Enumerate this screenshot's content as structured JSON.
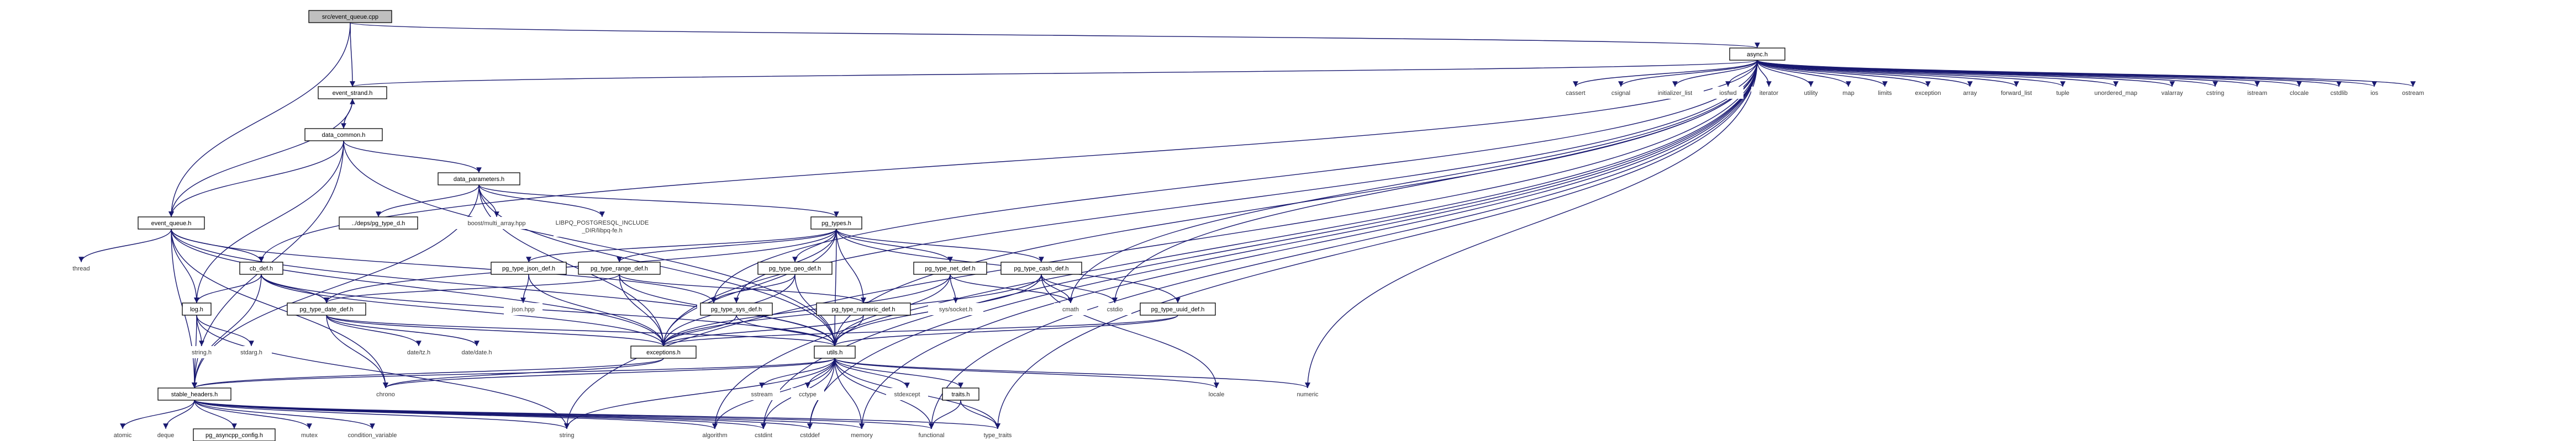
{
  "graph": {
    "title": "src/event_queue.cpp",
    "edge_color": "#191970",
    "root_fill": "#bfbfbf",
    "nodes": [
      {
        "id": "root",
        "label": "src/event_queue.cpp",
        "kind": "root"
      },
      {
        "id": "async",
        "label": "async.h",
        "kind": "file"
      },
      {
        "id": "event_strand",
        "label": "event_strand.h",
        "kind": "file"
      },
      {
        "id": "data_common",
        "label": "data_common.h",
        "kind": "file"
      },
      {
        "id": "data_parameters",
        "label": "data_parameters.h",
        "kind": "file"
      },
      {
        "id": "event_queue_h",
        "label": "event_queue.h",
        "kind": "file"
      },
      {
        "id": "pg_type_oid",
        "label": "../deps/pg_type_d.h",
        "kind": "file"
      },
      {
        "id": "boost_multi_array",
        "label": "boost/multi_array.hpp",
        "kind": "missing"
      },
      {
        "id": "libpq_fe",
        "label": "LIBPQ_POSTGRESQL_INCLUDE_DIR/libpq-fe.h",
        "kind": "missing"
      },
      {
        "id": "pg_types",
        "label": "pg_types.h",
        "kind": "file"
      },
      {
        "id": "thread",
        "label": "thread",
        "kind": "missing"
      },
      {
        "id": "cb_def",
        "label": "cb_def.h",
        "kind": "file"
      },
      {
        "id": "pg_type_json_def",
        "label": "pg_type_json_def.h",
        "kind": "file"
      },
      {
        "id": "pg_type_range_def",
        "label": "pg_type_range_def.h",
        "kind": "file"
      },
      {
        "id": "pg_type_geo_def",
        "label": "pg_type_geo_def.h",
        "kind": "file"
      },
      {
        "id": "pg_type_net_def",
        "label": "pg_type_net_def.h",
        "kind": "file"
      },
      {
        "id": "pg_type_cash_def",
        "label": "pg_type_cash_def.h",
        "kind": "file"
      },
      {
        "id": "log_h",
        "label": "log.h",
        "kind": "file"
      },
      {
        "id": "pg_type_date_def",
        "label": "pg_type_date_def.h",
        "kind": "file"
      },
      {
        "id": "json_hpp",
        "label": "json.hpp",
        "kind": "missing"
      },
      {
        "id": "vector",
        "label": "vector",
        "kind": "missing"
      },
      {
        "id": "pg_type_sys_def",
        "label": "pg_type_sys_def.h",
        "kind": "file"
      },
      {
        "id": "pg_type_numeric_def",
        "label": "pg_type_numeric_def.h",
        "kind": "file"
      },
      {
        "id": "sys_socket",
        "label": "sys/socket.h",
        "kind": "missing"
      },
      {
        "id": "cmath",
        "label": "cmath",
        "kind": "missing"
      },
      {
        "id": "cstdio",
        "label": "cstdio",
        "kind": "missing"
      },
      {
        "id": "pg_type_uuid_def",
        "label": "pg_type_uuid_def.h",
        "kind": "file"
      },
      {
        "id": "string_h",
        "label": "string.h",
        "kind": "missing"
      },
      {
        "id": "stdarg_h",
        "label": "stdarg.h",
        "kind": "missing"
      },
      {
        "id": "date_tz",
        "label": "date/tz.h",
        "kind": "missing"
      },
      {
        "id": "date_date",
        "label": "date/date.h",
        "kind": "missing"
      },
      {
        "id": "exceptions",
        "label": "exceptions.h",
        "kind": "file"
      },
      {
        "id": "utils",
        "label": "utils.h",
        "kind": "file"
      },
      {
        "id": "stable_headers",
        "label": "stable_headers.h",
        "kind": "file"
      },
      {
        "id": "chrono",
        "label": "chrono",
        "kind": "missing"
      },
      {
        "id": "sstream",
        "label": "sstream",
        "kind": "missing"
      },
      {
        "id": "cctype",
        "label": "cctype",
        "kind": "missing"
      },
      {
        "id": "stdexcept",
        "label": "stdexcept",
        "kind": "missing"
      },
      {
        "id": "traits",
        "label": "traits.h",
        "kind": "file"
      },
      {
        "id": "locale",
        "label": "locale",
        "kind": "missing"
      },
      {
        "id": "numeric",
        "label": "numeric",
        "kind": "missing"
      },
      {
        "id": "atomic",
        "label": "atomic",
        "kind": "missing"
      },
      {
        "id": "deque",
        "label": "deque",
        "kind": "missing"
      },
      {
        "id": "pg_asyncpp_config",
        "label": "pg_asyncpp_config.h",
        "kind": "file"
      },
      {
        "id": "mutex",
        "label": "mutex",
        "kind": "missing"
      },
      {
        "id": "condition_variable",
        "label": "condition_variable",
        "kind": "missing"
      },
      {
        "id": "string",
        "label": "string",
        "kind": "missing"
      },
      {
        "id": "algorithm",
        "label": "algorithm",
        "kind": "missing"
      },
      {
        "id": "cstdint",
        "label": "cstdint",
        "kind": "missing"
      },
      {
        "id": "cstddef",
        "label": "cstddef",
        "kind": "missing"
      },
      {
        "id": "memory",
        "label": "memory",
        "kind": "missing"
      },
      {
        "id": "functional",
        "label": "functional",
        "kind": "missing"
      },
      {
        "id": "type_traits",
        "label": "type_traits",
        "kind": "missing"
      },
      {
        "id": "cassert",
        "label": "cassert",
        "kind": "missing"
      },
      {
        "id": "csignal",
        "label": "csignal",
        "kind": "missing"
      },
      {
        "id": "initializer_list",
        "label": "initializer_list",
        "kind": "missing"
      },
      {
        "id": "ioshed",
        "label": "iosfwd",
        "kind": "missing"
      },
      {
        "id": "iterator",
        "label": "iterator",
        "kind": "missing"
      },
      {
        "id": "utility",
        "label": "utility",
        "kind": "missing"
      },
      {
        "id": "map",
        "label": "map",
        "kind": "missing"
      },
      {
        "id": "limits",
        "label": "limits",
        "kind": "missing"
      },
      {
        "id": "exception",
        "label": "exception",
        "kind": "missing"
      },
      {
        "id": "array",
        "label": "array",
        "kind": "missing"
      },
      {
        "id": "forward_list",
        "label": "forward_list",
        "kind": "missing"
      },
      {
        "id": "tuple",
        "label": "tuple",
        "kind": "missing"
      },
      {
        "id": "unordered_map",
        "label": "unordered_map",
        "kind": "missing"
      },
      {
        "id": "valarray",
        "label": "valarray",
        "kind": "missing"
      },
      {
        "id": "cstring",
        "label": "cstring",
        "kind": "missing"
      },
      {
        "id": "istream",
        "label": "istream",
        "kind": "missing"
      },
      {
        "id": "clocale",
        "label": "clocale",
        "kind": "missing"
      },
      {
        "id": "cstdlib",
        "label": "cstdlib",
        "kind": "missing"
      },
      {
        "id": "ios",
        "label": "ios",
        "kind": "missing"
      },
      {
        "id": "ostream",
        "label": "ostream",
        "kind": "missing"
      }
    ],
    "edges": [
      [
        "root",
        "async"
      ],
      [
        "root",
        "event_strand"
      ],
      [
        "root",
        "event_queue_h"
      ],
      [
        "async",
        "event_strand"
      ],
      [
        "async",
        "cassert"
      ],
      [
        "async",
        "csignal"
      ],
      [
        "async",
        "initializer_list"
      ],
      [
        "async",
        "ioshed"
      ],
      [
        "async",
        "iterator"
      ],
      [
        "async",
        "utility"
      ],
      [
        "async",
        "map"
      ],
      [
        "async",
        "limits"
      ],
      [
        "async",
        "exception"
      ],
      [
        "async",
        "array"
      ],
      [
        "async",
        "forward_list"
      ],
      [
        "async",
        "tuple"
      ],
      [
        "async",
        "unordered_map"
      ],
      [
        "async",
        "valarray"
      ],
      [
        "async",
        "cstring"
      ],
      [
        "async",
        "istream"
      ],
      [
        "async",
        "clocale"
      ],
      [
        "async",
        "cstdlib"
      ],
      [
        "async",
        "ios"
      ],
      [
        "async",
        "ostream"
      ],
      [
        "async",
        "vector"
      ],
      [
        "async",
        "cstdio"
      ],
      [
        "async",
        "cmath"
      ],
      [
        "async",
        "exceptions"
      ],
      [
        "async",
        "utils"
      ],
      [
        "async",
        "numeric"
      ],
      [
        "async",
        "string"
      ],
      [
        "async",
        "functional"
      ],
      [
        "async",
        "type_traits"
      ],
      [
        "async",
        "memory"
      ],
      [
        "async",
        "cstddef"
      ],
      [
        "async",
        "cstdint"
      ],
      [
        "async",
        "algorithm"
      ],
      [
        "async",
        "cb_def"
      ],
      [
        "event_strand",
        "data_common"
      ],
      [
        "event_strand",
        "event_queue_h"
      ],
      [
        "data_common",
        "event_strand"
      ],
      [
        "data_common",
        "data_parameters"
      ],
      [
        "data_common",
        "event_queue_h"
      ],
      [
        "data_common",
        "log_h"
      ],
      [
        "data_common",
        "stable_headers"
      ],
      [
        "data_common",
        "utils"
      ],
      [
        "data_parameters",
        "pg_type_oid"
      ],
      [
        "data_parameters",
        "boost_multi_array"
      ],
      [
        "data_parameters",
        "libpq_fe"
      ],
      [
        "data_parameters",
        "pg_types"
      ],
      [
        "data_parameters",
        "exceptions"
      ],
      [
        "data_parameters",
        "stable_headers"
      ],
      [
        "data_parameters",
        "utils"
      ],
      [
        "event_queue_h",
        "thread"
      ],
      [
        "event_queue_h",
        "cb_def"
      ],
      [
        "event_queue_h",
        "log_h"
      ],
      [
        "event_queue_h",
        "exceptions"
      ],
      [
        "event_queue_h",
        "utils"
      ],
      [
        "event_queue_h",
        "stable_headers"
      ],
      [
        "event_queue_h",
        "vector"
      ],
      [
        "event_queue_h",
        "chrono"
      ],
      [
        "pg_types",
        "pg_type_json_def"
      ],
      [
        "pg_types",
        "pg_type_range_def"
      ],
      [
        "pg_types",
        "pg_type_geo_def"
      ],
      [
        "pg_types",
        "pg_type_net_def"
      ],
      [
        "pg_types",
        "pg_type_cash_def"
      ],
      [
        "pg_types",
        "pg_type_date_def"
      ],
      [
        "pg_types",
        "pg_type_numeric_def"
      ],
      [
        "pg_types",
        "pg_type_uuid_def"
      ],
      [
        "pg_types",
        "pg_type_sys_def"
      ],
      [
        "pg_types",
        "exceptions"
      ],
      [
        "pg_types",
        "utils"
      ],
      [
        "cb_def",
        "log_h"
      ],
      [
        "cb_def",
        "exceptions"
      ],
      [
        "cb_def",
        "stable_headers"
      ],
      [
        "cb_def",
        "utils"
      ],
      [
        "cb_def",
        "pg_type_date_def"
      ],
      [
        "pg_type_json_def",
        "json_hpp"
      ],
      [
        "pg_type_json_def",
        "exceptions"
      ],
      [
        "pg_type_range_def",
        "pg_type_date_def"
      ],
      [
        "pg_type_range_def",
        "pg_type_numeric_def"
      ],
      [
        "pg_type_range_def",
        "exceptions"
      ],
      [
        "pg_type_range_def",
        "utils"
      ],
      [
        "pg_type_geo_def",
        "vector"
      ],
      [
        "pg_type_geo_def",
        "exceptions"
      ],
      [
        "pg_type_geo_def",
        "utils"
      ],
      [
        "pg_type_net_def",
        "sys_socket"
      ],
      [
        "pg_type_net_def",
        "cmath"
      ],
      [
        "pg_type_net_def",
        "exceptions"
      ],
      [
        "pg_type_net_def",
        "utils"
      ],
      [
        "pg_type_cash_def",
        "cmath"
      ],
      [
        "pg_type_cash_def",
        "cstdio"
      ],
      [
        "pg_type_cash_def",
        "exceptions"
      ],
      [
        "pg_type_cash_def",
        "utils"
      ],
      [
        "pg_type_cash_def",
        "locale"
      ],
      [
        "pg_type_uuid_def",
        "exceptions"
      ],
      [
        "pg_type_uuid_def",
        "utils"
      ],
      [
        "pg_type_sys_def",
        "exceptions"
      ],
      [
        "pg_type_sys_def",
        "utils"
      ],
      [
        "pg_type_numeric_def",
        "exceptions"
      ],
      [
        "pg_type_numeric_def",
        "utils"
      ],
      [
        "pg_type_date_def",
        "date_tz"
      ],
      [
        "pg_type_date_def",
        "date_date"
      ],
      [
        "pg_type_date_def",
        "chrono"
      ],
      [
        "pg_type_date_def",
        "exceptions"
      ],
      [
        "pg_type_date_def",
        "utils"
      ],
      [
        "log_h",
        "string_h"
      ],
      [
        "log_h",
        "stdarg_h"
      ],
      [
        "log_h",
        "stable_headers"
      ],
      [
        "log_h",
        "string"
      ],
      [
        "exceptions",
        "stable_headers"
      ],
      [
        "exceptions",
        "chrono"
      ],
      [
        "utils",
        "stable_headers"
      ],
      [
        "utils",
        "chrono"
      ],
      [
        "utils",
        "sstream"
      ],
      [
        "utils",
        "cctype"
      ],
      [
        "utils",
        "stdexcept"
      ],
      [
        "utils",
        "traits"
      ],
      [
        "utils",
        "locale"
      ],
      [
        "utils",
        "numeric"
      ],
      [
        "utils",
        "string"
      ],
      [
        "utils",
        "algorithm"
      ],
      [
        "utils",
        "cstdint"
      ],
      [
        "utils",
        "cstddef"
      ],
      [
        "utils",
        "memory"
      ],
      [
        "utils",
        "functional"
      ],
      [
        "utils",
        "type_traits"
      ],
      [
        "traits",
        "functional"
      ],
      [
        "traits",
        "type_traits"
      ],
      [
        "stable_headers",
        "atomic"
      ],
      [
        "stable_headers",
        "deque"
      ],
      [
        "stable_headers",
        "pg_asyncpp_config"
      ],
      [
        "stable_headers",
        "mutex"
      ],
      [
        "stable_headers",
        "condition_variable"
      ],
      [
        "stable_headers",
        "string"
      ],
      [
        "stable_headers",
        "algorithm"
      ],
      [
        "stable_headers",
        "cstdint"
      ],
      [
        "stable_headers",
        "cstddef"
      ],
      [
        "stable_headers",
        "memory"
      ],
      [
        "stable_headers",
        "functional"
      ],
      [
        "stable_headers",
        "type_traits"
      ]
    ]
  }
}
